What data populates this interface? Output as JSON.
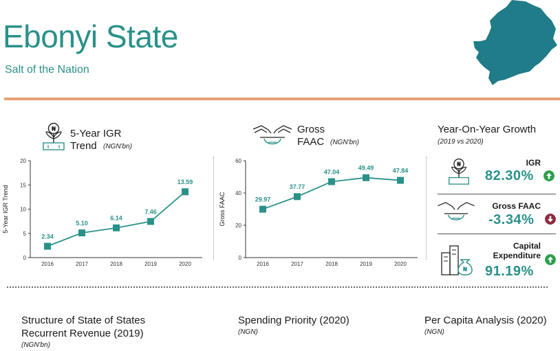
{
  "header": {
    "state_name": "Ebonyi State",
    "slogan": "Salt of the Nation"
  },
  "colors": {
    "teal": "#2a9189",
    "map_fill": "#1f7c88",
    "accent_rule": "#e8a270",
    "arrow_up": "#2e9e4b",
    "arrow_down": "#8b2a3e"
  },
  "igr_section": {
    "title_line1": "5-Year IGR",
    "title_line2": "Trend",
    "unit": "(NGN'bn)",
    "icon": "plant-money-icon"
  },
  "faac_section": {
    "title_line1": "Gross",
    "title_line2": "FAAC",
    "unit": "(NGN'bn)",
    "icon": "hands-bowl-icon"
  },
  "chart_data": [
    {
      "type": "line",
      "x": [
        "2016",
        "2017",
        "2018",
        "2019",
        "2020"
      ],
      "values": [
        2.34,
        5.1,
        6.14,
        7.46,
        13.59
      ],
      "value_labels": [
        "2.34",
        "5.10",
        "6.14",
        "7.46",
        "13.59"
      ],
      "ylabel": "5-Year IGR Trend",
      "ylim": [
        0,
        20
      ],
      "yticks": [
        "0",
        "5",
        "10",
        "15",
        "20"
      ],
      "grid": false,
      "legend": "none"
    },
    {
      "type": "line",
      "x": [
        "2016",
        "2017",
        "2018",
        "2019",
        "2020"
      ],
      "values": [
        29.97,
        37.77,
        47.04,
        49.49,
        47.84
      ],
      "value_labels": [
        "29.97",
        "37.77",
        "47.04",
        "49.49",
        "47.84"
      ],
      "ylabel": "Gross FAAC",
      "ylim": [
        0,
        60
      ],
      "yticks": [
        "0",
        "20",
        "40",
        "60"
      ],
      "grid": false,
      "legend": "none"
    }
  ],
  "yoy": {
    "title": "Year-On-Year Growth",
    "subtitle": "(2019 vs 2020)",
    "items": [
      {
        "label": "IGR",
        "value": "82.30%",
        "direction": "up",
        "icon": "plant-money-icon"
      },
      {
        "label": "Gross FAAC",
        "value": "-3.34%",
        "direction": "down",
        "icon": "hands-bowl-icon"
      },
      {
        "label_line1": "Capital",
        "label_line2": "Expenditure",
        "value": "91.19%",
        "direction": "up",
        "icon": "buildings-moneybag-icon"
      }
    ]
  },
  "bottom": {
    "structure": {
      "title_line1": "Structure of State of States",
      "title_line2": "Recurrent Revenue (2019)",
      "unit": "(NGN'bn)"
    },
    "spending": {
      "title": "Spending Priority (2020)",
      "unit": "(NGN)"
    },
    "per_capita": {
      "title": "Per Capita Analysis (2020)",
      "unit": "(NGN)"
    }
  }
}
